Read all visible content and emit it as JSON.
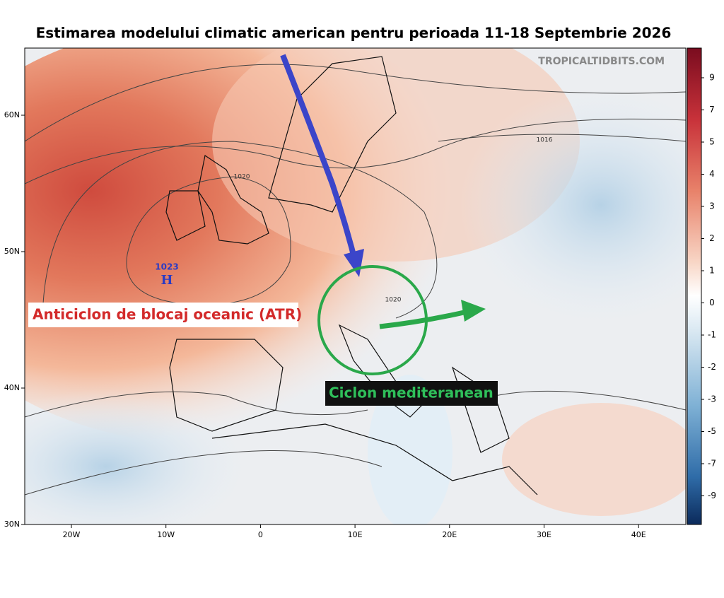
{
  "title": "Estimarea modelului climatic american pentru perioada 11-18 Septembrie 2026",
  "watermark": "TROPICALTIDBITS.COM",
  "latitude_labels": [
    "60N",
    "50N",
    "40N",
    "30N"
  ],
  "longitude_labels": [
    "20W",
    "10W",
    "0",
    "10E",
    "20E",
    "30E",
    "40E"
  ],
  "colorbar_labels": [
    9,
    7,
    5,
    4,
    3,
    2,
    1,
    0,
    -1,
    -2,
    -3,
    -5,
    -7,
    -9
  ],
  "contour_labels": [
    "1020",
    "1016",
    "1020"
  ],
  "pressure_center": {
    "value": "1023",
    "symbol": "H"
  },
  "annotations": {
    "anticyclone": "Anticiclon de blocaj oceanic (ATR)",
    "cyclone": "Ciclon mediteranean"
  }
}
